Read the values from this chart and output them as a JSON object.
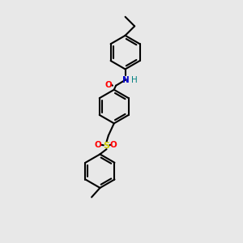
{
  "background_color": "#e8e8e8",
  "bond_color": "#000000",
  "red": "#ff0000",
  "blue": "#0000cd",
  "teal": "#008080",
  "yellow": "#cccc00",
  "lw": 1.5,
  "ring_r": 0.9,
  "xlim": [
    0,
    10
  ],
  "ylim": [
    0,
    13
  ]
}
